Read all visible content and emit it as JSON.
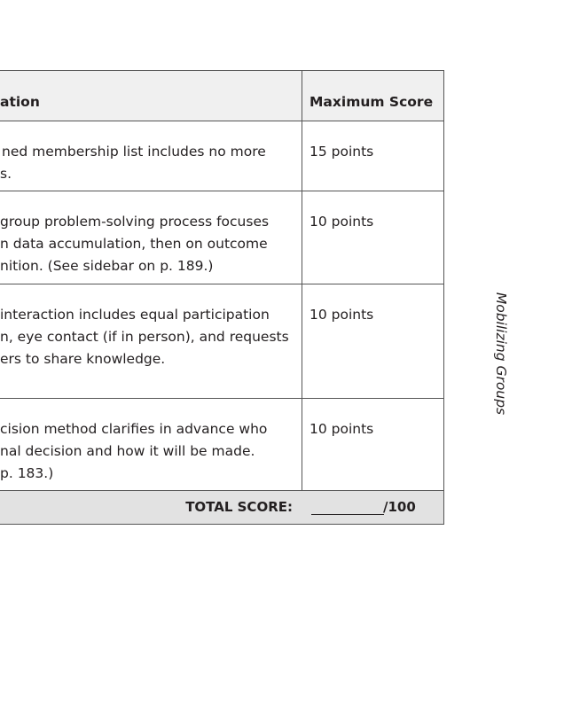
{
  "table": {
    "headers": {
      "criteria": "ation",
      "max_score": "Maximum Score"
    },
    "rows": [
      {
        "lines": [
          "ned membership list includes no more",
          "s."
        ],
        "score": "15 points"
      },
      {
        "lines": [
          "group problem-solving process focuses",
          "n data accumulation, then on outcome",
          "nition. (See sidebar on p. 189.)"
        ],
        "score": "10 points"
      },
      {
        "lines": [
          "interaction includes equal participation",
          "n, eye contact (if in person), and requests",
          "ers to share knowledge."
        ],
        "score": "10 points"
      },
      {
        "lines": [
          "cision method clarifies in advance who",
          "nal decision and how it will be made.",
          "p. 183.)"
        ],
        "score": "10 points"
      }
    ],
    "total_label": "TOTAL SCORE:",
    "total_suffix": "/100"
  },
  "sidebar_label": "Mobilizing Groups"
}
